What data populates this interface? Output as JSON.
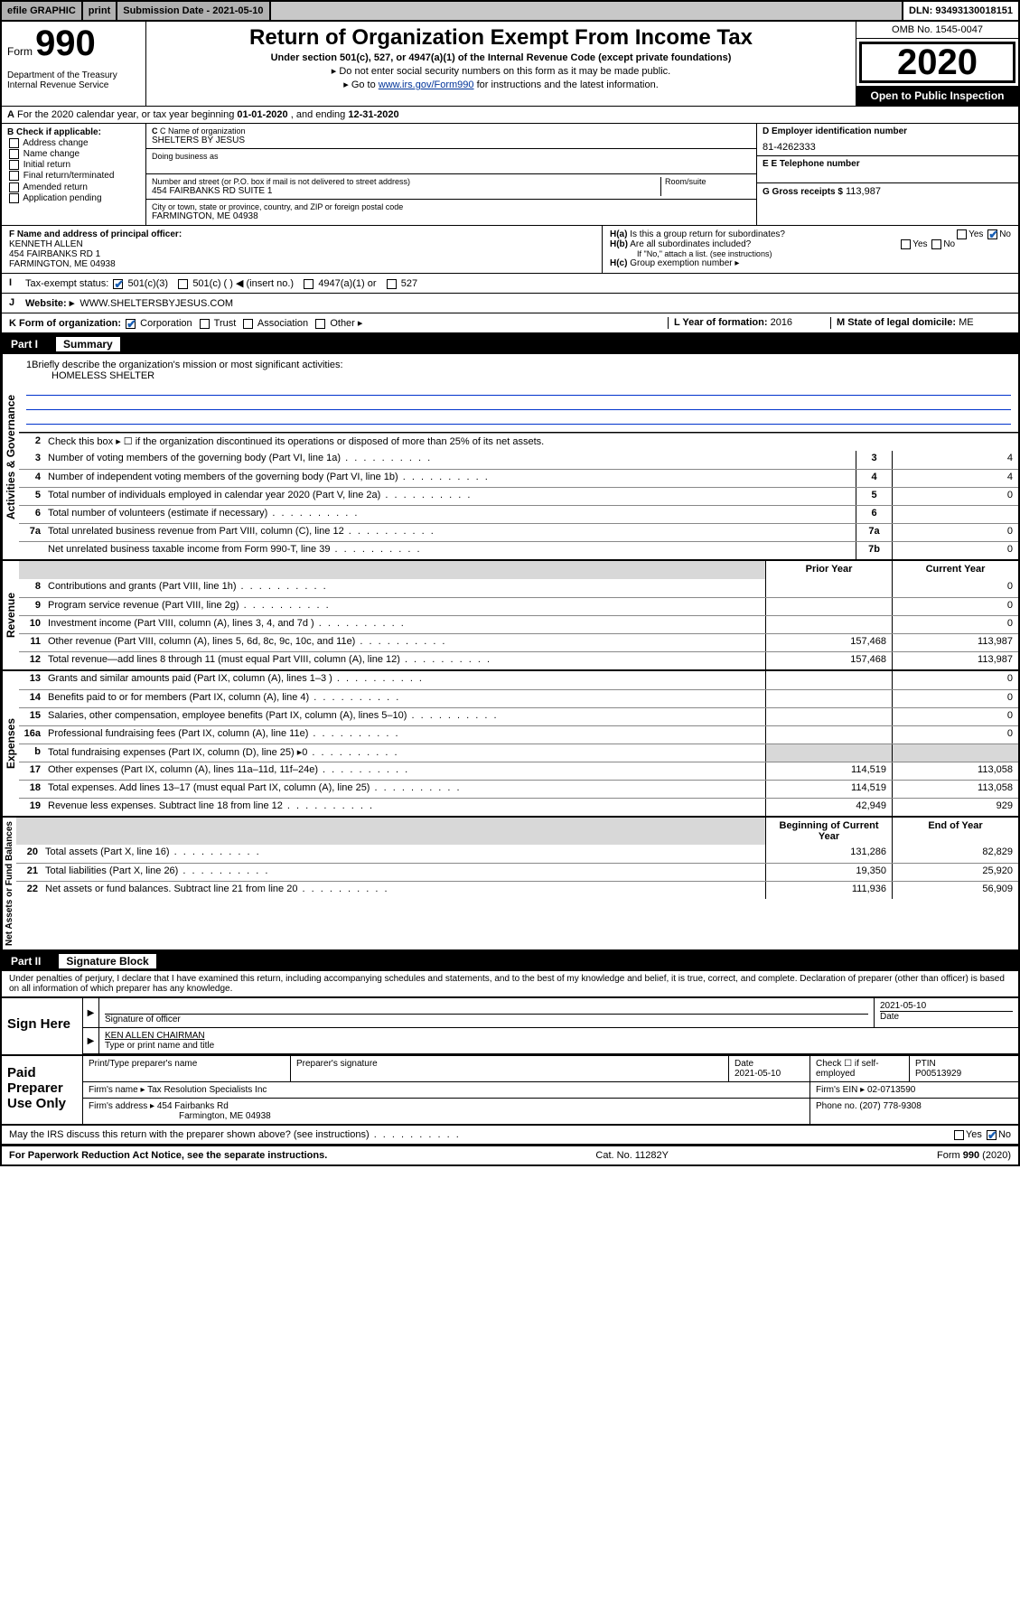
{
  "topbar": {
    "efile": "efile GRAPHIC",
    "print": "print",
    "submission_label": "Submission Date - 2021-05-10",
    "dln": "DLN: 93493130018151"
  },
  "header": {
    "form_prefix": "Form",
    "form_number": "990",
    "dept1": "Department of the Treasury",
    "dept2": "Internal Revenue Service",
    "title": "Return of Organization Exempt From Income Tax",
    "subtitle": "Under section 501(c), 527, or 4947(a)(1) of the Internal Revenue Code (except private foundations)",
    "note1": "Do not enter social security numbers on this form as it may be made public.",
    "note2_pre": "Go to ",
    "note2_link": "www.irs.gov/Form990",
    "note2_post": " for instructions and the latest information.",
    "omb": "OMB No. 1545-0047",
    "year": "2020",
    "inspection": "Open to Public Inspection"
  },
  "period": {
    "text_pre": "For the 2020 calendar year, or tax year beginning ",
    "begin": "01-01-2020",
    "mid": " , and ending ",
    "end": "12-31-2020"
  },
  "boxb": {
    "label": "B Check if applicable:",
    "opts": [
      "Address change",
      "Name change",
      "Initial return",
      "Final return/terminated",
      "Amended return",
      "Application pending"
    ]
  },
  "boxc": {
    "name_label": "C Name of organization",
    "name": "SHELTERS BY JESUS",
    "dba_label": "Doing business as",
    "addr_label": "Number and street (or P.O. box if mail is not delivered to street address)",
    "suite_label": "Room/suite",
    "addr": "454 FAIRBANKS RD SUITE 1",
    "city_label": "City or town, state or province, country, and ZIP or foreign postal code",
    "city": "FARMINGTON, ME  04938"
  },
  "boxd": {
    "label": "D Employer identification number",
    "value": "81-4262333"
  },
  "boxe": {
    "label": "E Telephone number",
    "value": ""
  },
  "boxg": {
    "label": "G Gross receipts $",
    "value": "113,987"
  },
  "boxf": {
    "label": "F  Name and address of principal officer:",
    "name": "KENNETH ALLEN",
    "addr1": "454 FAIRBANKS RD 1",
    "addr2": "FARMINGTON, ME  04938"
  },
  "boxh": {
    "a": "Is this a group return for subordinates?",
    "b": "Are all subordinates included?",
    "b_note": "If \"No,\" attach a list. (see instructions)",
    "c": "Group exemption number ▸"
  },
  "line_i": {
    "label": "Tax-exempt status:",
    "opts": [
      "501(c)(3)",
      "501(c) (  ) ◀ (insert no.)",
      "4947(a)(1) or",
      "527"
    ]
  },
  "line_j": {
    "label": "Website: ▸",
    "value": "WWW.SHELTERSBYJESUS.COM"
  },
  "line_k": {
    "label": "K Form of organization:",
    "opts": [
      "Corporation",
      "Trust",
      "Association",
      "Other ▸"
    ],
    "l_label": "L Year of formation:",
    "l_val": "2016",
    "m_label": "M State of legal domicile:",
    "m_val": "ME"
  },
  "part1": {
    "header": "Part I",
    "title": "Summary",
    "q1": "Briefly describe the organization's mission or most significant activities:",
    "q1_val": "HOMELESS SHELTER",
    "q2": "Check this box ▸ ☐  if the organization discontinued its operations or disposed of more than 25% of its net assets.",
    "prior_year": "Prior Year",
    "current_year": "Current Year",
    "begin_year": "Beginning of Current Year",
    "end_year": "End of Year",
    "rows_gov": [
      {
        "n": "3",
        "d": "Number of voting members of the governing body (Part VI, line 1a)",
        "c": "3",
        "v": "4"
      },
      {
        "n": "4",
        "d": "Number of independent voting members of the governing body (Part VI, line 1b)",
        "c": "4",
        "v": "4"
      },
      {
        "n": "5",
        "d": "Total number of individuals employed in calendar year 2020 (Part V, line 2a)",
        "c": "5",
        "v": "0"
      },
      {
        "n": "6",
        "d": "Total number of volunteers (estimate if necessary)",
        "c": "6",
        "v": ""
      },
      {
        "n": "7a",
        "d": "Total unrelated business revenue from Part VIII, column (C), line 12",
        "c": "7a",
        "v": "0"
      },
      {
        "n": "",
        "d": "Net unrelated business taxable income from Form 990-T, line 39",
        "c": "7b",
        "v": "0"
      }
    ],
    "rows_rev": [
      {
        "n": "8",
        "d": "Contributions and grants (Part VIII, line 1h)",
        "p": "",
        "c": "0"
      },
      {
        "n": "9",
        "d": "Program service revenue (Part VIII, line 2g)",
        "p": "",
        "c": "0"
      },
      {
        "n": "10",
        "d": "Investment income (Part VIII, column (A), lines 3, 4, and 7d )",
        "p": "",
        "c": "0"
      },
      {
        "n": "11",
        "d": "Other revenue (Part VIII, column (A), lines 5, 6d, 8c, 9c, 10c, and 11e)",
        "p": "157,468",
        "c": "113,987"
      },
      {
        "n": "12",
        "d": "Total revenue—add lines 8 through 11 (must equal Part VIII, column (A), line 12)",
        "p": "157,468",
        "c": "113,987"
      }
    ],
    "rows_exp": [
      {
        "n": "13",
        "d": "Grants and similar amounts paid (Part IX, column (A), lines 1–3 )",
        "p": "",
        "c": "0"
      },
      {
        "n": "14",
        "d": "Benefits paid to or for members (Part IX, column (A), line 4)",
        "p": "",
        "c": "0"
      },
      {
        "n": "15",
        "d": "Salaries, other compensation, employee benefits (Part IX, column (A), lines 5–10)",
        "p": "",
        "c": "0"
      },
      {
        "n": "16a",
        "d": "Professional fundraising fees (Part IX, column (A), line 11e)",
        "p": "",
        "c": "0"
      },
      {
        "n": "b",
        "d": "Total fundraising expenses (Part IX, column (D), line 25) ▸0",
        "p": "grey",
        "c": "grey"
      },
      {
        "n": "17",
        "d": "Other expenses (Part IX, column (A), lines 11a–11d, 11f–24e)",
        "p": "114,519",
        "c": "113,058"
      },
      {
        "n": "18",
        "d": "Total expenses. Add lines 13–17 (must equal Part IX, column (A), line 25)",
        "p": "114,519",
        "c": "113,058"
      },
      {
        "n": "19",
        "d": "Revenue less expenses. Subtract line 18 from line 12",
        "p": "42,949",
        "c": "929"
      }
    ],
    "rows_net": [
      {
        "n": "20",
        "d": "Total assets (Part X, line 16)",
        "p": "131,286",
        "c": "82,829"
      },
      {
        "n": "21",
        "d": "Total liabilities (Part X, line 26)",
        "p": "19,350",
        "c": "25,920"
      },
      {
        "n": "22",
        "d": "Net assets or fund balances. Subtract line 21 from line 20",
        "p": "111,936",
        "c": "56,909"
      }
    ]
  },
  "part2": {
    "header": "Part II",
    "title": "Signature Block",
    "perjury": "Under penalties of perjury, I declare that I have examined this return, including accompanying schedules and statements, and to the best of my knowledge and belief, it is true, correct, and complete. Declaration of preparer (other than officer) is based on all information of which preparer has any knowledge.",
    "sign_label": "Sign Here",
    "sig_officer": "Signature of officer",
    "sig_date": "2021-05-10",
    "sig_date_label": "Date",
    "officer_name": "KEN ALLEN  CHAIRMAN",
    "officer_name_label": "Type or print name and title",
    "paid_label": "Paid Preparer Use Only",
    "prep_name_label": "Print/Type preparer's name",
    "prep_sig_label": "Preparer's signature",
    "prep_date_label": "Date",
    "prep_date": "2021-05-10",
    "check_self": "Check ☐ if self-employed",
    "ptin_label": "PTIN",
    "ptin": "P00513929",
    "firm_name_label": "Firm's name    ▸",
    "firm_name": "Tax Resolution Specialists Inc",
    "firm_ein_label": "Firm's EIN ▸",
    "firm_ein": "02-0713590",
    "firm_addr_label": "Firm's address ▸",
    "firm_addr1": "454 Fairbanks Rd",
    "firm_addr2": "Farmington, ME  04938",
    "phone_label": "Phone no.",
    "phone": "(207) 778-9308",
    "discuss": "May the IRS discuss this return with the preparer shown above? (see instructions)"
  },
  "footer": {
    "pra": "For Paperwork Reduction Act Notice, see the separate instructions.",
    "cat": "Cat. No. 11282Y",
    "form": "Form 990 (2020)"
  },
  "vlabels": {
    "gov": "Activities & Governance",
    "rev": "Revenue",
    "exp": "Expenses",
    "net": "Net Assets or Fund Balances"
  }
}
